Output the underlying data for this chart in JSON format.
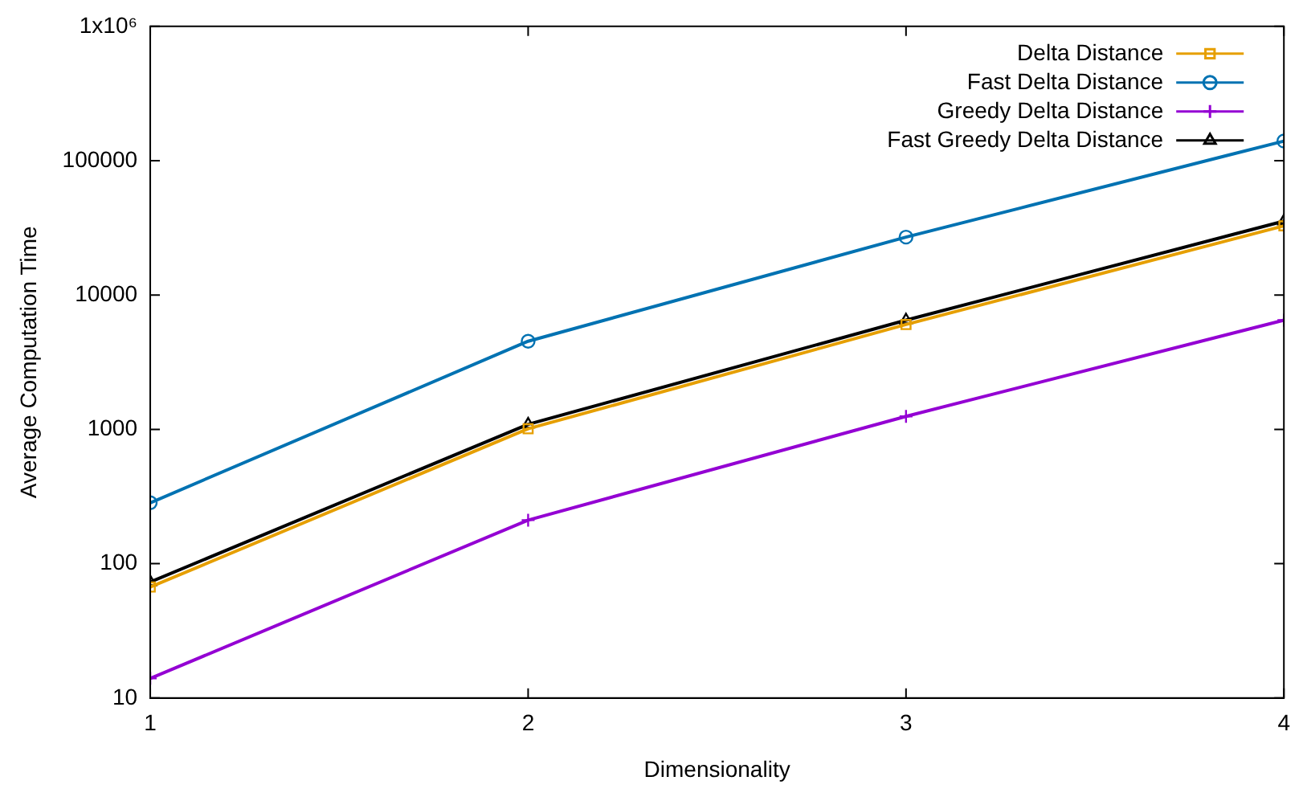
{
  "chart_data": {
    "type": "line",
    "xlabel": "Dimensionality",
    "ylabel": "Average Computation Time",
    "x": [
      1,
      2,
      3,
      4
    ],
    "log": "y",
    "xlim": [
      1,
      4
    ],
    "xticks": [
      1,
      2,
      3,
      4
    ],
    "ylim": [
      10,
      1000000
    ],
    "yticks": [
      10,
      100,
      1000,
      10000,
      100000,
      {
        "value": 1000000,
        "label": "1x10⁶"
      }
    ],
    "grid": false,
    "legend": "top right",
    "line_style": "solid",
    "series": [
      {
        "name": "Delta Distance",
        "color": "#e69f00",
        "marker": "square",
        "values": [
          67,
          1010,
          6030,
          32700
        ]
      },
      {
        "name": "Fast Delta Distance",
        "color": "#0072b2",
        "marker": "circle",
        "values": [
          284,
          4530,
          27000,
          140000
        ]
      },
      {
        "name": "Greedy Delta Distance",
        "color": "#9400d3",
        "marker": "cross",
        "values": [
          14,
          211,
          1250,
          6500
        ]
      },
      {
        "name": "Fast Greedy Delta Distance",
        "color": "#000000",
        "marker": "triangle",
        "values": [
          73,
          1090,
          6500,
          35500
        ]
      }
    ]
  }
}
